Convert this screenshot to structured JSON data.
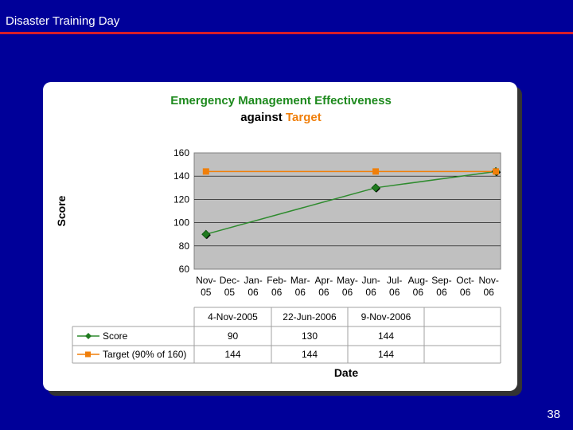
{
  "slide": {
    "title": "Disaster Training Day",
    "page_number": "38"
  },
  "colors": {
    "background": "#000099",
    "rule": "#d81e2a",
    "score": "#2e8b2e",
    "target": "#f07f0a",
    "plot_area": "#c0c0c0"
  },
  "chart_data": {
    "type": "line",
    "title_part1": "Emergency Management Effectiveness",
    "title_part2": "against ",
    "title_part3": "Target",
    "xlabel": "Date",
    "ylabel": "Score",
    "ylim": [
      60,
      160
    ],
    "yticks": [
      "160",
      "140",
      "120",
      "100",
      "80",
      "60"
    ],
    "categories": [
      {
        "line1": "Nov-",
        "line2": "05"
      },
      {
        "line1": "Dec-",
        "line2": "05"
      },
      {
        "line1": "Jan-",
        "line2": "06"
      },
      {
        "line1": "Feb-",
        "line2": "06"
      },
      {
        "line1": "Mar-",
        "line2": "06"
      },
      {
        "line1": "Apr-",
        "line2": "06"
      },
      {
        "line1": "May-",
        "line2": "06"
      },
      {
        "line1": "Jun-",
        "line2": "06"
      },
      {
        "line1": "Jul-",
        "line2": "06"
      },
      {
        "line1": "Aug-",
        "line2": "06"
      },
      {
        "line1": "Sep-",
        "line2": "06"
      },
      {
        "line1": "Oct-",
        "line2": "06"
      },
      {
        "line1": "Nov-",
        "line2": "06"
      }
    ],
    "series": [
      {
        "name": "Score",
        "marker": "diamond",
        "positions": [
          0,
          7.2,
          12.3
        ],
        "values": [
          90,
          130,
          144
        ]
      },
      {
        "name": "Target (90% of 160)",
        "marker": "square",
        "positions": [
          0,
          7.2,
          12.3
        ],
        "values": [
          144,
          144,
          144
        ]
      }
    ],
    "table": {
      "headers": [
        "4-Nov-2005",
        "22-Jun-2006",
        "9-Nov-2006",
        ""
      ],
      "rows": [
        {
          "label": "Score",
          "values": [
            "90",
            "130",
            "144",
            ""
          ]
        },
        {
          "label": "Target (90% of 160)",
          "values": [
            "144",
            "144",
            "144",
            ""
          ]
        }
      ]
    }
  }
}
